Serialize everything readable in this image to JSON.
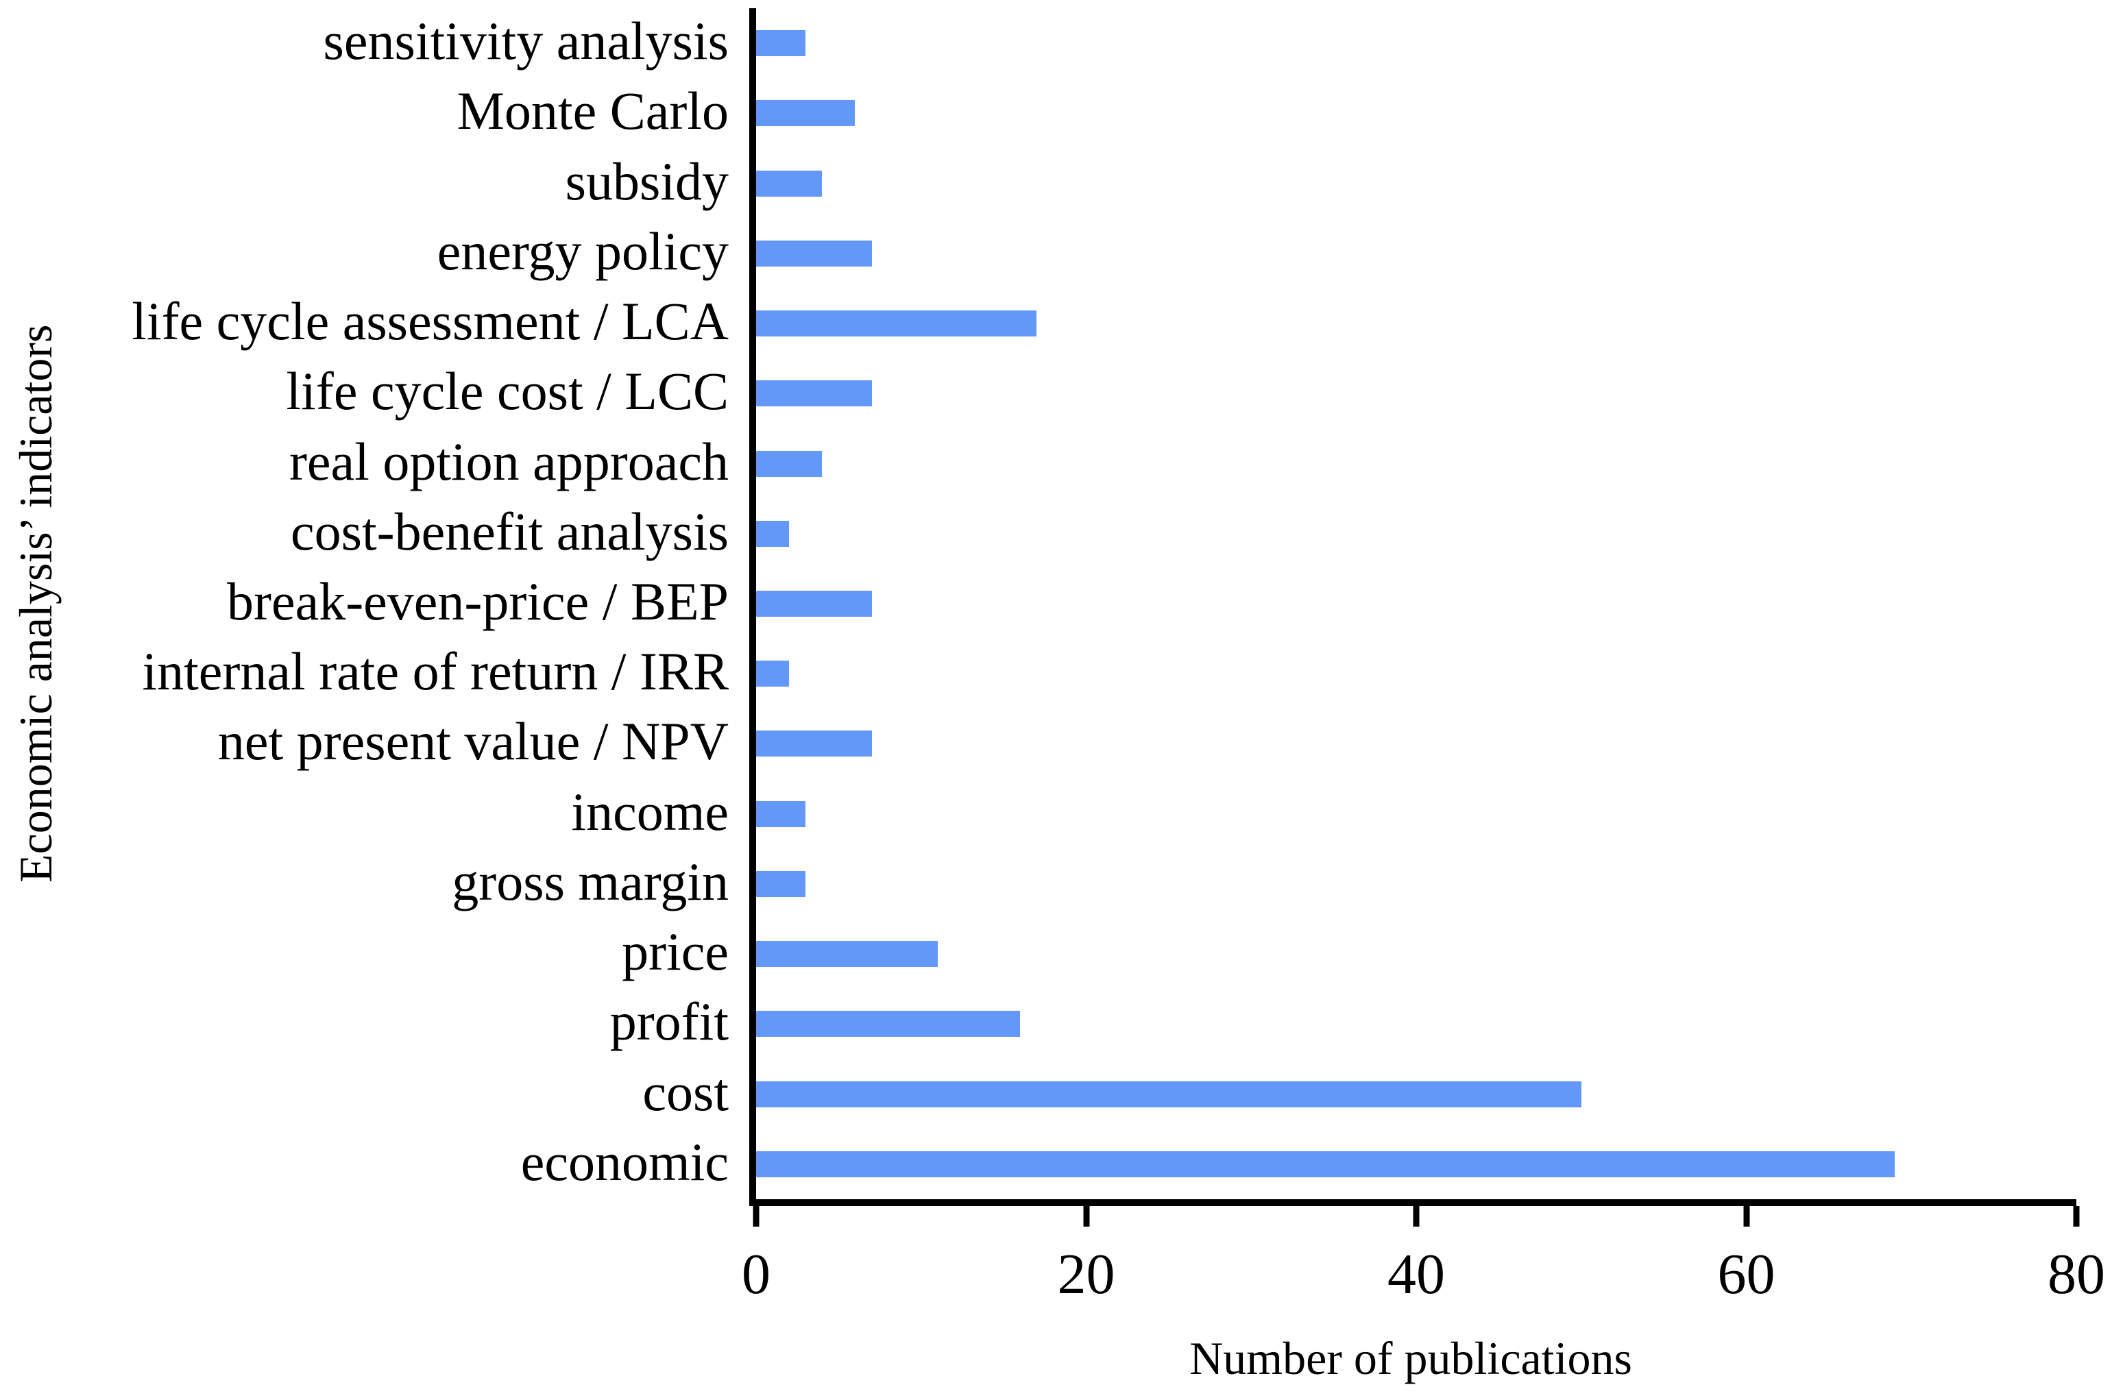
{
  "chart_data": {
    "type": "bar",
    "orientation": "horizontal",
    "title": "",
    "xlabel": "Number of publications",
    "ylabel": "Economic analysis’ indicators",
    "xlim": [
      0,
      80
    ],
    "xticks": [
      0,
      20,
      40,
      60,
      80
    ],
    "grid": false,
    "legend": "none",
    "bar_color": "#6398F8",
    "axis_color": "#000000",
    "categories": [
      "sensitivity analysis",
      "Monte Carlo",
      "subsidy",
      "energy policy",
      "life cycle assessment / LCA",
      "life cycle cost / LCC",
      "real option approach",
      "cost-benefit analysis",
      "break-even-price / BEP",
      "internal rate of return / IRR",
      "net present value / NPV",
      "income",
      "gross margin",
      "price",
      "profit",
      "cost",
      "economic"
    ],
    "values": [
      3,
      6,
      4,
      7,
      17,
      7,
      4,
      2,
      7,
      2,
      7,
      3,
      3,
      11,
      16,
      50,
      69
    ]
  }
}
